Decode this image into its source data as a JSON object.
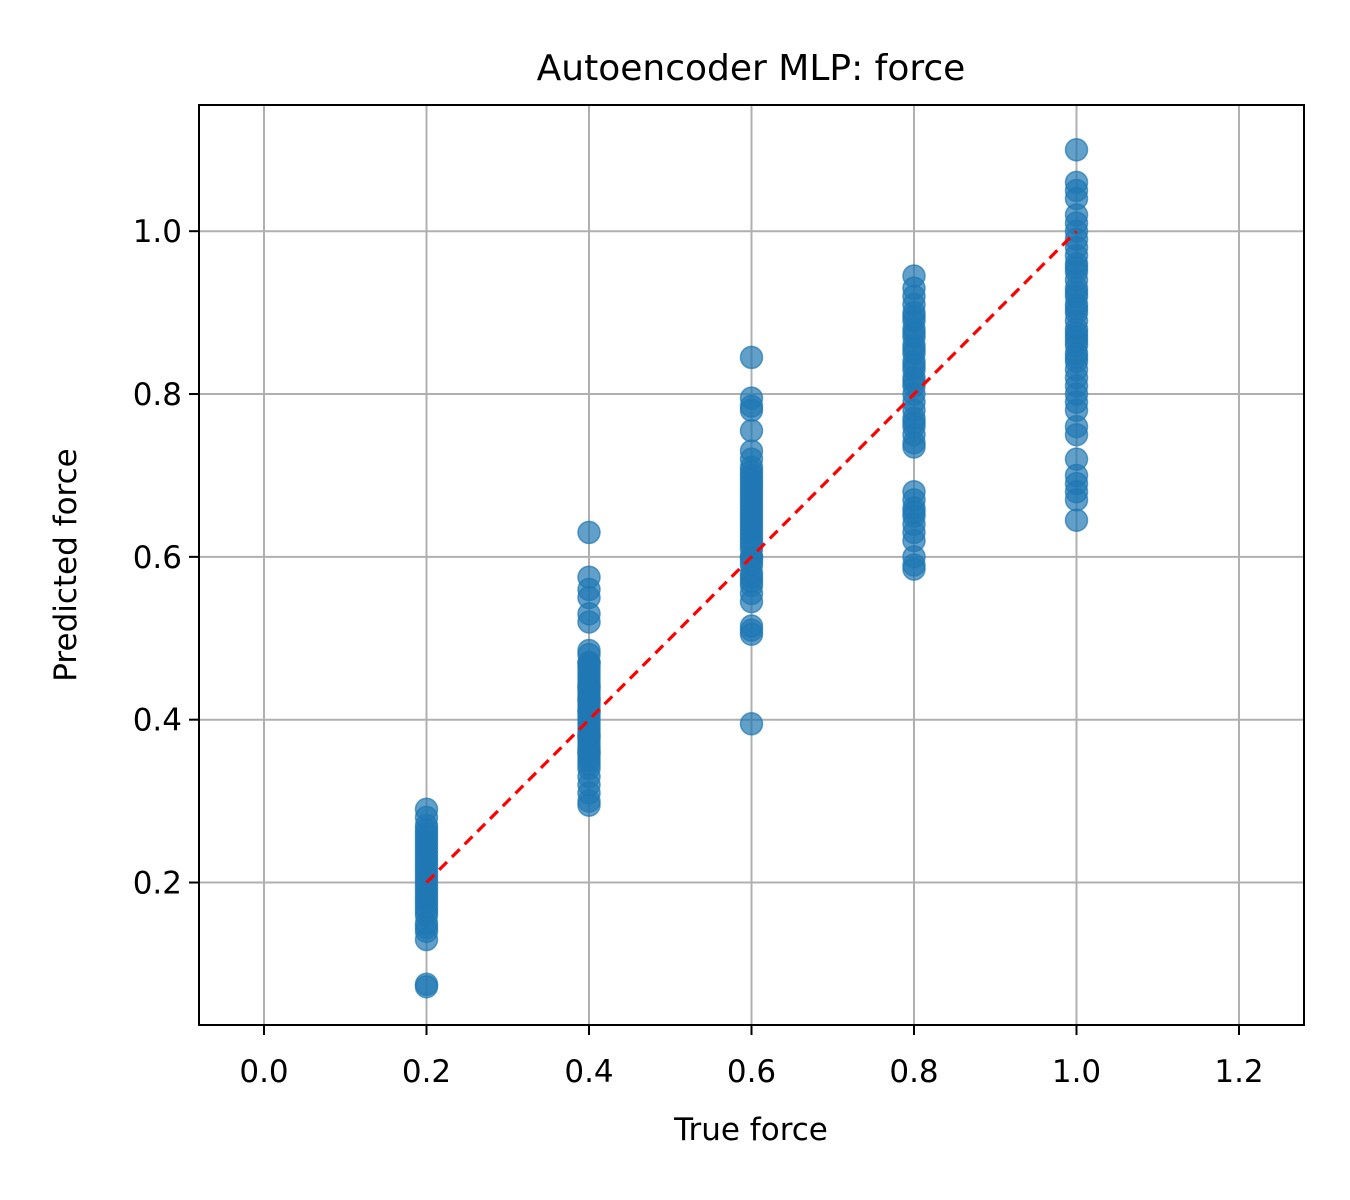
{
  "chart_data": {
    "type": "scatter",
    "title": "Autoencoder MLP: force",
    "xlabel": "True force",
    "ylabel": "Predicted force",
    "xlim": [
      -0.08,
      1.28
    ],
    "ylim": [
      0.025,
      1.155
    ],
    "xticks": [
      "0.0",
      "0.2",
      "0.4",
      "0.6",
      "0.8",
      "1.0",
      "1.2"
    ],
    "yticks": [
      "0.2",
      "0.4",
      "0.6",
      "0.8",
      "1.0"
    ],
    "grid": true,
    "colors": {
      "points": "#1f77b4",
      "reference_line": "#ff0000",
      "grid": "#b0b0b0"
    },
    "reference_line": {
      "style": "dashed",
      "x": [
        0.2,
        1.0
      ],
      "y": [
        0.2,
        1.0
      ]
    },
    "series": [
      {
        "x": [
          0.2,
          0.2,
          0.2,
          0.2,
          0.2,
          0.2,
          0.2,
          0.2,
          0.2,
          0.2,
          0.2,
          0.2,
          0.2,
          0.2,
          0.2,
          0.2,
          0.2,
          0.2,
          0.2,
          0.2,
          0.2,
          0.2,
          0.2,
          0.2,
          0.2,
          0.2,
          0.2,
          0.2,
          0.2,
          0.2,
          0.2,
          0.4,
          0.4,
          0.4,
          0.4,
          0.4,
          0.4,
          0.4,
          0.4,
          0.4,
          0.4,
          0.4,
          0.4,
          0.4,
          0.4,
          0.4,
          0.4,
          0.4,
          0.4,
          0.4,
          0.4,
          0.4,
          0.4,
          0.4,
          0.4,
          0.4,
          0.4,
          0.4,
          0.4,
          0.4,
          0.4,
          0.4,
          0.4,
          0.4,
          0.4,
          0.4,
          0.4,
          0.4,
          0.4,
          0.4,
          0.4,
          0.4,
          0.4,
          0.4,
          0.4,
          0.4,
          0.4,
          0.6,
          0.6,
          0.6,
          0.6,
          0.6,
          0.6,
          0.6,
          0.6,
          0.6,
          0.6,
          0.6,
          0.6,
          0.6,
          0.6,
          0.6,
          0.6,
          0.6,
          0.6,
          0.6,
          0.6,
          0.6,
          0.6,
          0.6,
          0.6,
          0.6,
          0.6,
          0.6,
          0.6,
          0.6,
          0.6,
          0.6,
          0.6,
          0.6,
          0.6,
          0.6,
          0.6,
          0.6,
          0.6,
          0.6,
          0.6,
          0.6,
          0.6,
          0.8,
          0.8,
          0.8,
          0.8,
          0.8,
          0.8,
          0.8,
          0.8,
          0.8,
          0.8,
          0.8,
          0.8,
          0.8,
          0.8,
          0.8,
          0.8,
          0.8,
          0.8,
          0.8,
          0.8,
          0.8,
          0.8,
          0.8,
          0.8,
          0.8,
          0.8,
          0.8,
          0.8,
          0.8,
          0.8,
          0.8,
          0.8,
          0.8,
          0.8,
          0.8,
          0.8,
          0.8,
          0.8,
          0.8,
          1.0,
          1.0,
          1.0,
          1.0,
          1.0,
          1.0,
          1.0,
          1.0,
          1.0,
          1.0,
          1.0,
          1.0,
          1.0,
          1.0,
          1.0,
          1.0,
          1.0,
          1.0,
          1.0,
          1.0,
          1.0,
          1.0,
          1.0,
          1.0,
          1.0,
          1.0,
          1.0,
          1.0,
          1.0,
          1.0,
          1.0,
          1.0,
          1.0,
          1.0,
          1.0,
          1.0,
          1.0,
          1.0,
          1.0,
          1.0,
          1.0,
          1.0,
          1.0
        ],
        "y": [
          0.29,
          0.28,
          0.27,
          0.265,
          0.26,
          0.255,
          0.25,
          0.245,
          0.24,
          0.235,
          0.23,
          0.225,
          0.22,
          0.215,
          0.21,
          0.205,
          0.2,
          0.195,
          0.19,
          0.185,
          0.18,
          0.175,
          0.17,
          0.165,
          0.16,
          0.15,
          0.145,
          0.14,
          0.13,
          0.075,
          0.072,
          0.63,
          0.575,
          0.56,
          0.55,
          0.53,
          0.52,
          0.485,
          0.48,
          0.47,
          0.465,
          0.46,
          0.455,
          0.45,
          0.445,
          0.44,
          0.435,
          0.43,
          0.425,
          0.42,
          0.415,
          0.41,
          0.405,
          0.4,
          0.395,
          0.39,
          0.385,
          0.38,
          0.375,
          0.37,
          0.365,
          0.36,
          0.355,
          0.35,
          0.345,
          0.34,
          0.33,
          0.32,
          0.31,
          0.3,
          0.295,
          0.425,
          0.44,
          0.38,
          0.47,
          0.41,
          0.36,
          0.845,
          0.795,
          0.785,
          0.78,
          0.755,
          0.73,
          0.72,
          0.71,
          0.705,
          0.7,
          0.69,
          0.685,
          0.68,
          0.67,
          0.665,
          0.66,
          0.65,
          0.645,
          0.64,
          0.63,
          0.625,
          0.62,
          0.61,
          0.6,
          0.595,
          0.59,
          0.58,
          0.575,
          0.565,
          0.555,
          0.545,
          0.515,
          0.51,
          0.505,
          0.395,
          0.675,
          0.655,
          0.615,
          0.6,
          0.635,
          0.695,
          0.57,
          0.945,
          0.93,
          0.92,
          0.91,
          0.9,
          0.89,
          0.88,
          0.87,
          0.86,
          0.85,
          0.84,
          0.83,
          0.82,
          0.81,
          0.8,
          0.79,
          0.78,
          0.77,
          0.76,
          0.75,
          0.74,
          0.735,
          0.68,
          0.67,
          0.66,
          0.65,
          0.64,
          0.63,
          0.62,
          0.6,
          0.59,
          0.585,
          0.895,
          0.875,
          0.855,
          0.835,
          0.815,
          0.765,
          0.655,
          1.1,
          1.06,
          1.05,
          1.04,
          1.02,
          1.01,
          1.0,
          0.99,
          0.98,
          0.97,
          0.96,
          0.95,
          0.94,
          0.93,
          0.92,
          0.91,
          0.9,
          0.89,
          0.88,
          0.87,
          0.86,
          0.85,
          0.84,
          0.83,
          0.82,
          0.81,
          0.8,
          0.79,
          0.78,
          0.76,
          0.75,
          0.72,
          0.7,
          0.69,
          0.68,
          0.67,
          0.645,
          0.865,
          0.845,
          0.905,
          0.925,
          0.875,
          0.955
        ]
      }
    ]
  }
}
